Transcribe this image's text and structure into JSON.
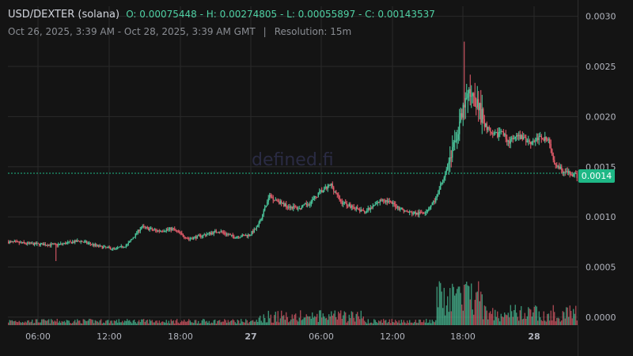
{
  "header": {
    "symbol": "USD/DEXTER (solana)",
    "ohlc": "O: 0.00075448 - H: 0.00274805 - L: 0.00055897 - C: 0.00143537",
    "range": "Oct 26, 2025, 3:39 AM - Oct 28, 2025, 3:39 AM GMT",
    "separator": "|",
    "resolution": "Resolution: 15m"
  },
  "watermark": "defined.fi",
  "last_price_label": "0.0014",
  "colors": {
    "up": "#4fd1a4",
    "down": "#f06070",
    "background": "#141414",
    "grid": "#2a2a2a",
    "last_price": "#1fb886"
  },
  "chart_data": {
    "type": "candlestick",
    "y_ticks": [
      "0.0030",
      "0.0025",
      "0.0020",
      "0.0015",
      "0.0010",
      "0.0005",
      "0.0000"
    ],
    "x_ticks": [
      "06:00",
      "12:00",
      "18:00",
      "27",
      "06:00",
      "12:00",
      "18:00",
      "28"
    ],
    "ylim": [
      -8e-05,
      0.0031
    ],
    "last_price": 0.00143537,
    "grid": true,
    "close_anchors": [
      [
        0,
        0.00075
      ],
      [
        20,
        0.00073
      ],
      [
        40,
        0.00072
      ],
      [
        60,
        0.00076
      ],
      [
        78,
        0.0007
      ],
      [
        90,
        0.00068
      ],
      [
        100,
        0.00072
      ],
      [
        112,
        0.0009
      ],
      [
        125,
        0.00086
      ],
      [
        138,
        0.00088
      ],
      [
        152,
        0.00078
      ],
      [
        165,
        0.00082
      ],
      [
        177,
        0.00086
      ],
      [
        190,
        0.0008
      ],
      [
        203,
        0.00082
      ],
      [
        210,
        0.0009
      ],
      [
        220,
        0.00121
      ],
      [
        232,
        0.00112
      ],
      [
        245,
        0.00108
      ],
      [
        255,
        0.00115
      ],
      [
        263,
        0.00125
      ],
      [
        272,
        0.00132
      ],
      [
        280,
        0.00115
      ],
      [
        290,
        0.0011
      ],
      [
        298,
        0.00105
      ],
      [
        305,
        0.00108
      ],
      [
        315,
        0.00118
      ],
      [
        325,
        0.00112
      ],
      [
        335,
        0.00105
      ],
      [
        345,
        0.00103
      ],
      [
        352,
        0.00106
      ],
      [
        360,
        0.00118
      ],
      [
        368,
        0.00145
      ],
      [
        375,
        0.0017
      ],
      [
        382,
        0.002
      ],
      [
        385,
        0.00215
      ],
      [
        390,
        0.00225
      ],
      [
        395,
        0.00215
      ],
      [
        400,
        0.00195
      ],
      [
        408,
        0.0018
      ],
      [
        415,
        0.00185
      ],
      [
        422,
        0.00175
      ],
      [
        430,
        0.0018
      ],
      [
        440,
        0.00175
      ],
      [
        450,
        0.0018
      ],
      [
        455,
        0.00175
      ],
      [
        460,
        0.00155
      ],
      [
        468,
        0.00145
      ],
      [
        480,
        0.0014
      ]
    ]
  }
}
